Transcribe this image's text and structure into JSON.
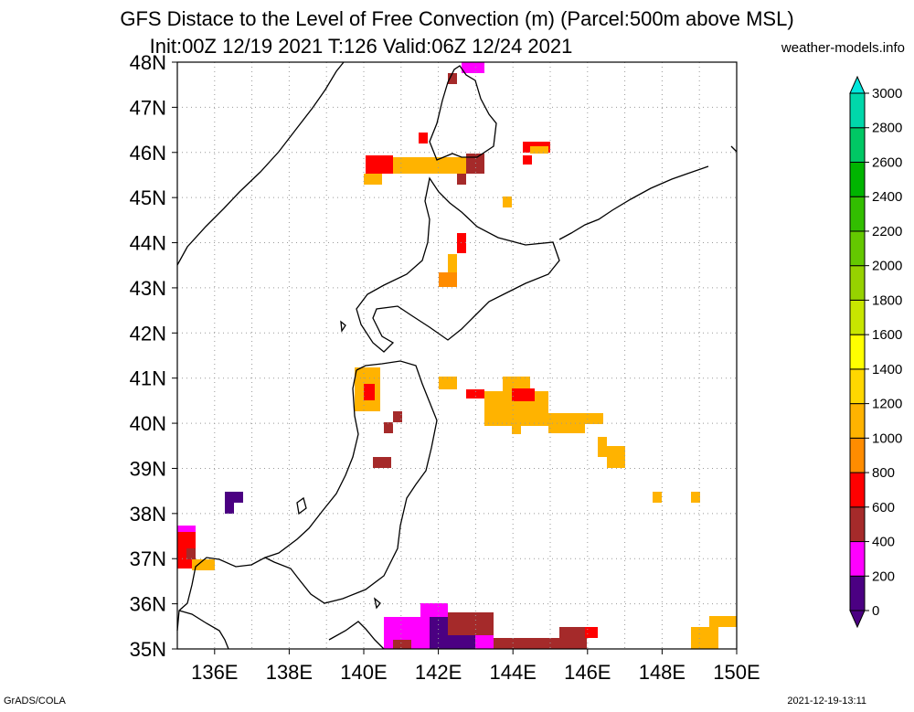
{
  "header": {
    "title_line1": "GFS Distace to the Level of Free Convection (m) (Parcel:500m above MSL)",
    "title_line2": "Init:00Z 12/19 2021 T:126 Valid:06Z 12/24 2021",
    "site": "weather-models.info"
  },
  "footer": {
    "left": "GrADS/COLA",
    "right": "2021-12-19-13:11"
  },
  "map": {
    "lat_labels": [
      "48N",
      "47N",
      "46N",
      "45N",
      "44N",
      "43N",
      "42N",
      "41N",
      "40N",
      "39N",
      "38N",
      "37N",
      "36N",
      "35N"
    ],
    "lon_labels": [
      "136E",
      "138E",
      "140E",
      "142E",
      "144E",
      "146E",
      "148E",
      "150E"
    ]
  },
  "colorbar": {
    "levels": [
      "0",
      "200",
      "400",
      "600",
      "800",
      "1000",
      "1200",
      "1400",
      "1600",
      "1800",
      "2000",
      "2200",
      "2400",
      "2600",
      "2800",
      "3000"
    ],
    "colors": [
      "#4b0082",
      "#ff00ff",
      "#a52a2a",
      "#ff0000",
      "#ff8c00",
      "#ffb300",
      "#ffd700",
      "#ffff00",
      "#c8e600",
      "#96d200",
      "#64c800",
      "#32be00",
      "#00b400",
      "#00c864",
      "#00d7aa",
      "#00e6dc"
    ]
  }
}
